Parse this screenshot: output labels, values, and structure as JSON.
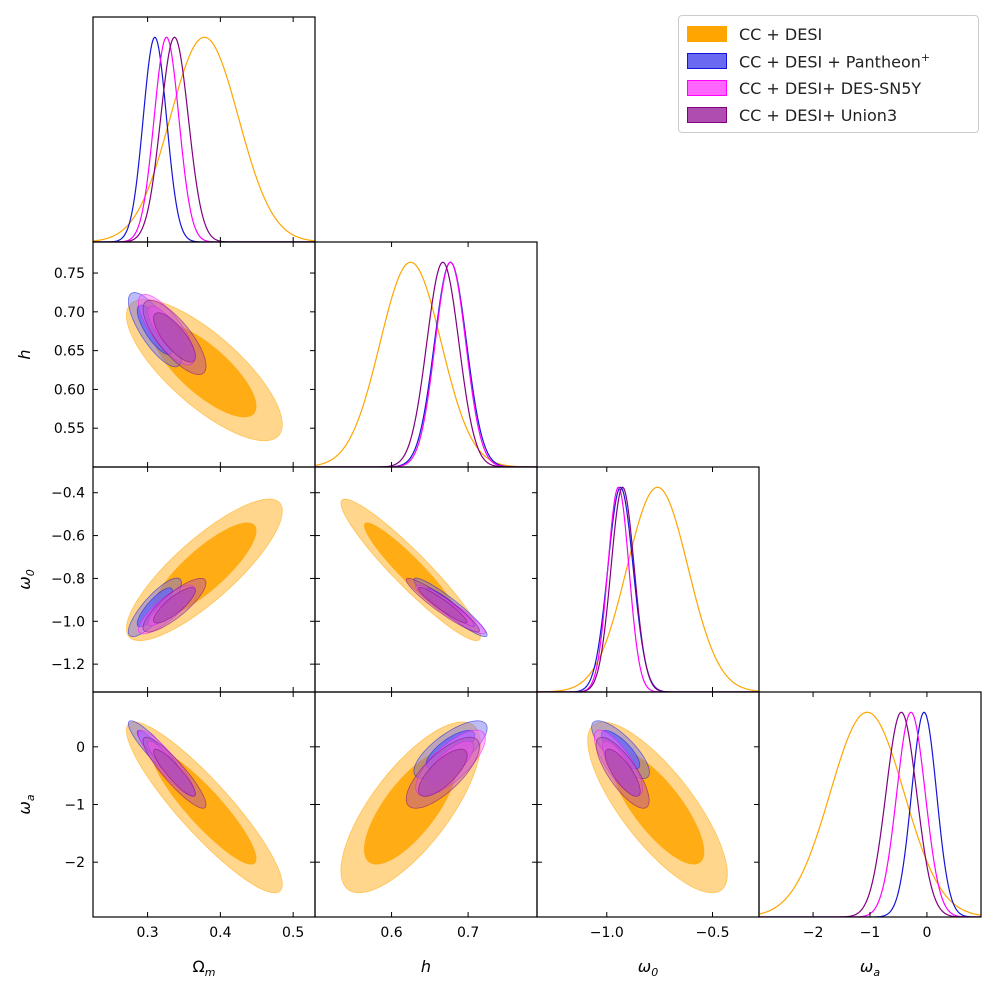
{
  "chart_data": {
    "type": "corner-plot",
    "parameters": [
      {
        "key": "Om",
        "axis_label": "Ω",
        "axis_sub": "m",
        "range": [
          0.225,
          0.53
        ],
        "ticks": [
          0.3,
          0.4,
          0.5
        ],
        "tick_labels": [
          "0.3",
          "0.4",
          "0.5"
        ]
      },
      {
        "key": "h",
        "axis_label": "h",
        "axis_sub": "",
        "range": [
          0.5,
          0.79
        ],
        "ticks": [
          0.55,
          0.6,
          0.65,
          0.7,
          0.75
        ],
        "tick_labels": [
          "0.55",
          "0.60",
          "0.65",
          "0.70",
          "0.75"
        ],
        "xticks": [
          0.6,
          0.7
        ],
        "xtick_labels": [
          "0.6",
          "0.7"
        ]
      },
      {
        "key": "w0",
        "axis_label": "ω",
        "axis_sub": "0",
        "range": [
          -1.33,
          -0.28
        ],
        "ticks": [
          -1.2,
          -1.0,
          -0.8,
          -0.6,
          -0.4
        ],
        "tick_labels": [
          "−1.2",
          "−1.0",
          "−0.8",
          "−0.6",
          "−0.4"
        ],
        "xticks": [
          -1.0,
          -0.5
        ],
        "xtick_labels": [
          "−1.0",
          "−0.5"
        ]
      },
      {
        "key": "wa",
        "axis_label": "ω",
        "axis_sub": "a",
        "range": [
          -2.95,
          0.95
        ],
        "ticks": [
          -2,
          -1,
          0
        ],
        "tick_labels": [
          "−2",
          "−1",
          "0"
        ]
      }
    ],
    "series": [
      {
        "name": "CC + DESI",
        "color": "#ffa500",
        "fill": "#ffa500",
        "line": "#ffa500",
        "mean": {
          "Om": 0.378,
          "h": 0.625,
          "w0": -0.76,
          "wa": -1.05
        },
        "sd": {
          "Om": 0.047,
          "h": 0.04,
          "w0": 0.145,
          "wa": 0.65
        }
      },
      {
        "name": "CC + DESI + Pantheon$^+$",
        "color": "#0000ff",
        "fill": "#6a6af0",
        "line": "#1515d8",
        "mean": {
          "Om": 0.31,
          "h": 0.677,
          "w0": -0.935,
          "wa": -0.05
        },
        "sd": {
          "Om": 0.016,
          "h": 0.021,
          "w0": 0.06,
          "wa": 0.22
        }
      },
      {
        "name": "CC + DESI+ DES-SN5Y",
        "color": "#ff44ff",
        "fill": "#ff66ff",
        "line": "#ff00ff",
        "mean": {
          "Om": 0.326,
          "h": 0.677,
          "w0": -0.945,
          "wa": -0.28
        },
        "sd": {
          "Om": 0.017,
          "h": 0.02,
          "w0": 0.05,
          "wa": 0.25
        }
      },
      {
        "name": "CC + DESI+ Union3",
        "color": "#aa44aa",
        "fill": "#b04db0",
        "line": "#800080",
        "mean": {
          "Om": 0.337,
          "h": 0.667,
          "w0": -0.925,
          "wa": -0.45
        },
        "sd": {
          "Om": 0.019,
          "h": 0.021,
          "w0": 0.055,
          "wa": 0.27
        }
      }
    ],
    "correlations": {
      "Om_h": -0.77,
      "Om_w0": 0.83,
      "Om_wa": -0.9,
      "h_w0": -0.94,
      "h_wa": 0.74,
      "w0_wa": -0.78
    },
    "contour_levels": [
      "68%",
      "95%"
    ],
    "legend_position": "top-right"
  },
  "legend": {
    "items": [
      {
        "label": "CC + DESI",
        "color": "#ffa500"
      },
      {
        "label": "CC + DESI + Pantheon",
        "sup": "+",
        "color": "#6a6af0"
      },
      {
        "label": "CC + DESI+ DES-SN5Y",
        "color": "#ff66ff"
      },
      {
        "label": "CC + DESI+ Union3",
        "color": "#b04db0"
      }
    ]
  }
}
